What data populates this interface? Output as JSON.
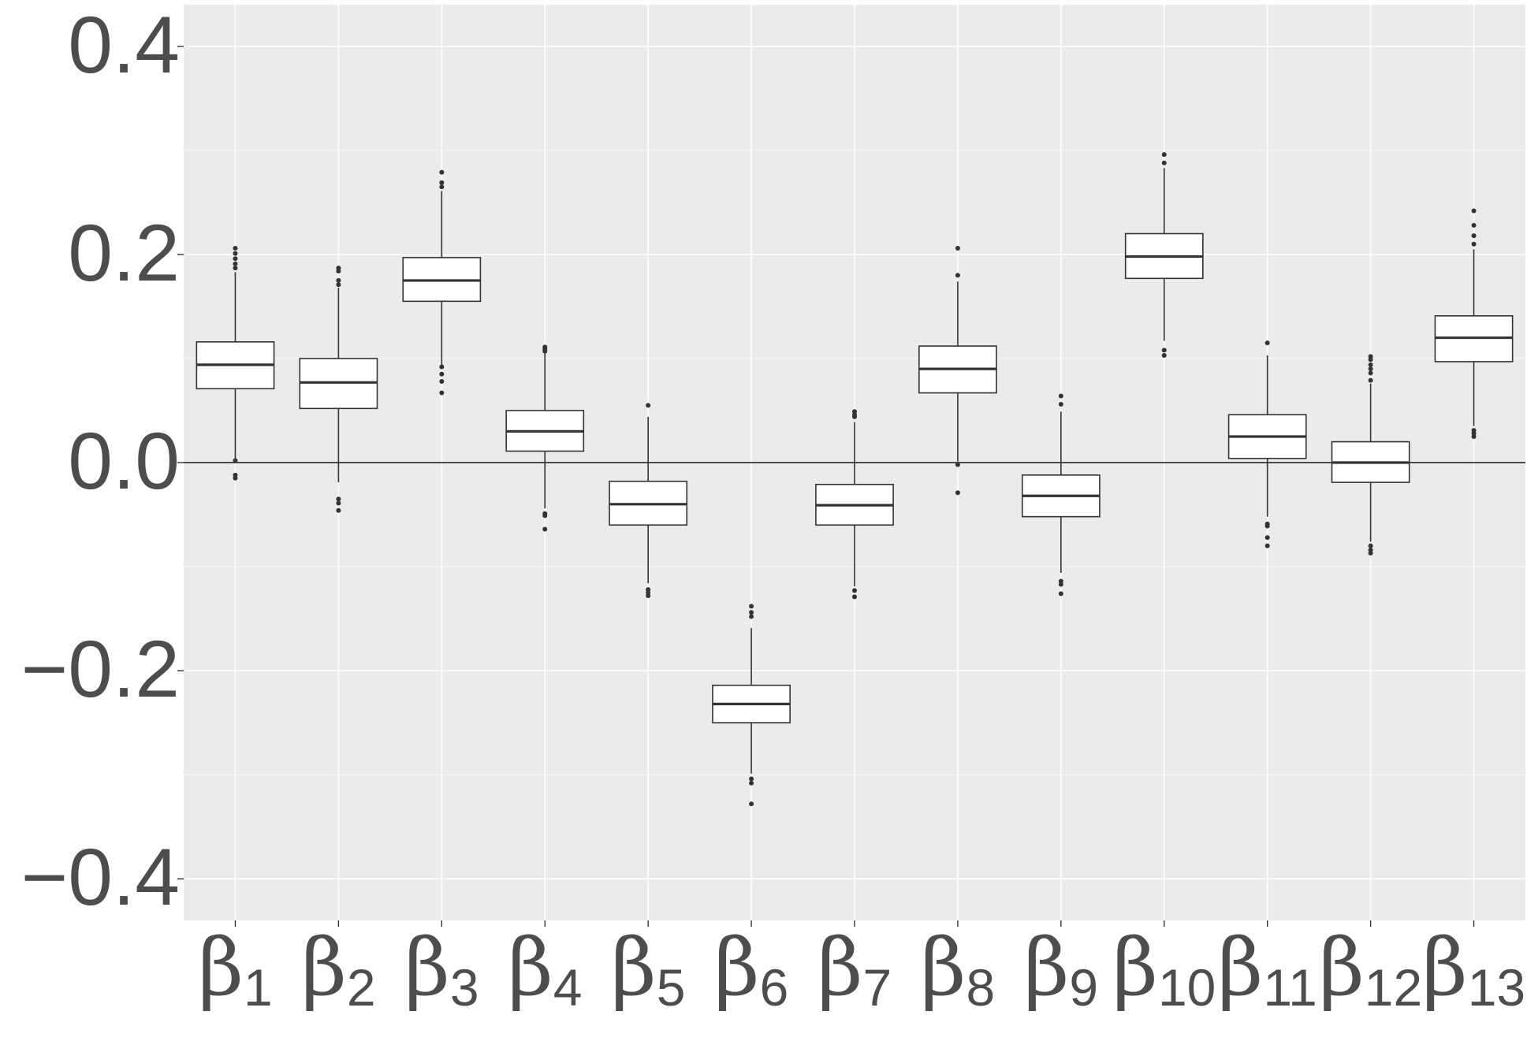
{
  "chart_data": {
    "type": "boxplot",
    "title": "",
    "xlabel": "",
    "ylabel": "",
    "ylim": [
      -0.44,
      0.44
    ],
    "y_ticks": [
      "0.4",
      "0.2",
      "0.0",
      "−0.2",
      "−0.4"
    ],
    "y_tick_values": [
      0.4,
      0.2,
      0.0,
      -0.2,
      -0.4
    ],
    "reference_line": 0.0,
    "grid": true,
    "colors": {
      "panel": "#ebebeb",
      "grid": "#ffffff",
      "box_fill": "#ffffff",
      "stroke": "#333333",
      "text": "#4d4d4d"
    },
    "categories": [
      {
        "base": "β",
        "sub": "1"
      },
      {
        "base": "β",
        "sub": "2"
      },
      {
        "base": "β",
        "sub": "3"
      },
      {
        "base": "β",
        "sub": "4"
      },
      {
        "base": "β",
        "sub": "5"
      },
      {
        "base": "β",
        "sub": "6"
      },
      {
        "base": "β",
        "sub": "7"
      },
      {
        "base": "β",
        "sub": "8"
      },
      {
        "base": "β",
        "sub": "9"
      },
      {
        "base": "β",
        "sub": "10"
      },
      {
        "base": "β",
        "sub": "11"
      },
      {
        "base": "β",
        "sub": "12"
      },
      {
        "base": "β",
        "sub": "13"
      }
    ],
    "boxes": [
      {
        "lower": 0.003,
        "q1": 0.071,
        "median": 0.094,
        "q3": 0.116,
        "upper": 0.183,
        "outliers": [
          0.206,
          0.201,
          0.196,
          0.191,
          0.187,
          0.002,
          -0.012,
          -0.015
        ]
      },
      {
        "lower": -0.019,
        "q1": 0.052,
        "median": 0.077,
        "q3": 0.1,
        "upper": 0.168,
        "outliers": [
          0.187,
          0.184,
          0.175,
          0.171,
          -0.035,
          -0.039,
          -0.046
        ]
      },
      {
        "lower": 0.094,
        "q1": 0.155,
        "median": 0.175,
        "q3": 0.197,
        "upper": 0.261,
        "outliers": [
          0.279,
          0.269,
          0.265,
          0.092,
          0.085,
          0.078,
          0.067
        ]
      },
      {
        "lower": -0.044,
        "q1": 0.011,
        "median": 0.03,
        "q3": 0.05,
        "upper": 0.105,
        "outliers": [
          0.111,
          0.109,
          0.107,
          -0.049,
          -0.051,
          -0.064
        ]
      },
      {
        "lower": -0.116,
        "q1": -0.06,
        "median": -0.04,
        "q3": -0.018,
        "upper": 0.044,
        "outliers": [
          0.055,
          -0.122,
          -0.125,
          -0.128
        ]
      },
      {
        "lower": -0.299,
        "q1": -0.25,
        "median": -0.232,
        "q3": -0.214,
        "upper": -0.159,
        "outliers": [
          -0.138,
          -0.144,
          -0.148,
          -0.304,
          -0.308,
          -0.328
        ]
      },
      {
        "lower": -0.119,
        "q1": -0.06,
        "median": -0.041,
        "q3": -0.021,
        "upper": 0.039,
        "outliers": [
          0.049,
          0.046,
          0.044,
          -0.123,
          -0.129
        ]
      },
      {
        "lower": 0.001,
        "q1": 0.067,
        "median": 0.09,
        "q3": 0.112,
        "upper": 0.174,
        "outliers": [
          0.206,
          0.18,
          -0.002,
          -0.029
        ]
      },
      {
        "lower": -0.106,
        "q1": -0.052,
        "median": -0.032,
        "q3": -0.012,
        "upper": 0.049,
        "outliers": [
          0.064,
          0.056,
          -0.114,
          -0.117,
          -0.126
        ]
      },
      {
        "lower": 0.117,
        "q1": 0.177,
        "median": 0.198,
        "q3": 0.22,
        "upper": 0.283,
        "outliers": [
          0.296,
          0.288,
          0.108,
          0.103
        ]
      },
      {
        "lower": -0.052,
        "q1": 0.004,
        "median": 0.025,
        "q3": 0.046,
        "upper": 0.103,
        "outliers": [
          0.115,
          -0.059,
          -0.061,
          -0.072,
          -0.08
        ]
      },
      {
        "lower": -0.076,
        "q1": -0.019,
        "median": 0.0,
        "q3": 0.02,
        "upper": 0.076,
        "outliers": [
          0.102,
          0.099,
          0.094,
          0.09,
          0.086,
          0.079,
          -0.08,
          -0.084,
          -0.087
        ]
      },
      {
        "lower": 0.035,
        "q1": 0.097,
        "median": 0.12,
        "q3": 0.141,
        "upper": 0.205,
        "outliers": [
          0.242,
          0.228,
          0.218,
          0.21,
          0.031,
          0.028,
          0.025
        ]
      }
    ]
  }
}
